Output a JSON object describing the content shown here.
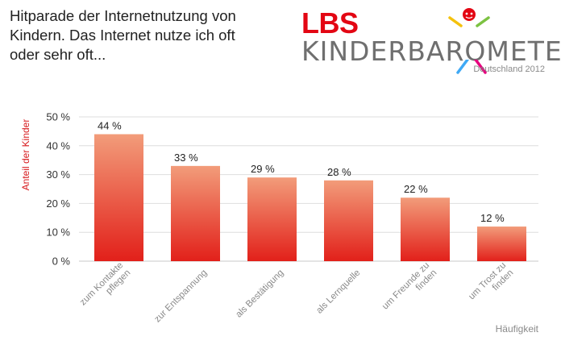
{
  "title_lines": [
    "Hitparade der Internetnutzung von",
    "Kindern. Das Internet nutze ich oft",
    "oder sehr oft..."
  ],
  "logo": {
    "brand": "LBS",
    "name": "KINDERBAROMETER",
    "sub": "Deutschland 2012"
  },
  "colors": {
    "bar_top": "#f29c7a",
    "bar_bottom": "#e2201a",
    "ylabel": "#d7191c",
    "brand_red": "#e30613"
  },
  "chart_data": {
    "type": "bar",
    "title": "Hitparade der Internetnutzung von Kindern. Das Internet nutze ich oft oder sehr oft...",
    "xlabel": "Häufigkeit",
    "ylabel": "Anteil der Kinder",
    "ylim": [
      0,
      50
    ],
    "yticks": [
      "0 %",
      "10 %",
      "20 %",
      "30 %",
      "40 %",
      "50 %"
    ],
    "grid": true,
    "categories": [
      [
        "zum Kontakte",
        "pflegen"
      ],
      [
        "zur Entspannung"
      ],
      [
        "als Bestätigung"
      ],
      [
        "als Lernquelle"
      ],
      [
        "um Freunde zu",
        "finden"
      ],
      [
        "um Trost zu",
        "finden"
      ]
    ],
    "values": [
      44,
      33,
      29,
      28,
      22,
      12
    ],
    "data_labels": [
      "44 %",
      "33 %",
      "29 %",
      "28 %",
      "22 %",
      "12 %"
    ]
  }
}
